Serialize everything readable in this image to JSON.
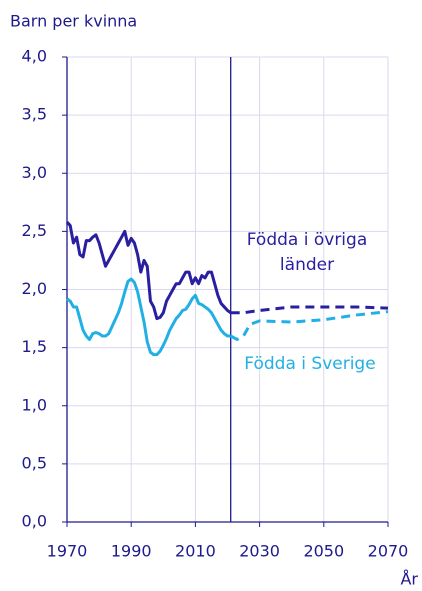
{
  "chart_data": {
    "type": "line",
    "y_label": "Barn per kvinna",
    "x_label": "År",
    "xlim": [
      1970,
      2070
    ],
    "xticks": [
      1970,
      1990,
      2010,
      2030,
      2050,
      2070
    ],
    "ylim": [
      0,
      4
    ],
    "yticks": [
      {
        "value": 0,
        "label": "0,0"
      },
      {
        "value": 0.5,
        "label": "0,5"
      },
      {
        "value": 1,
        "label": "1,0"
      },
      {
        "value": 1.5,
        "label": "1,5"
      },
      {
        "value": 2,
        "label": "2,0"
      },
      {
        "value": 2.5,
        "label": "2,5"
      },
      {
        "value": 3,
        "label": "3,0"
      },
      {
        "value": 3.5,
        "label": "3,5"
      },
      {
        "value": 4,
        "label": "4,0"
      }
    ],
    "grid": true,
    "vline": 2021,
    "series": [
      {
        "name": "Födda i övriga länder",
        "color": "#2a1fa0",
        "x": [
          1970,
          1971,
          1972,
          1973,
          1974,
          1975,
          1976,
          1977,
          1978,
          1979,
          1980,
          1981,
          1982,
          1983,
          1984,
          1985,
          1986,
          1987,
          1988,
          1989,
          1990,
          1991,
          1992,
          1993,
          1994,
          1995,
          1996,
          1997,
          1998,
          1999,
          2000,
          2001,
          2002,
          2003,
          2004,
          2005,
          2006,
          2007,
          2008,
          2009,
          2010,
          2011,
          2012,
          2013,
          2014,
          2015,
          2016,
          2017,
          2018,
          2019,
          2020,
          2021
        ],
        "values": [
          2.58,
          2.55,
          2.4,
          2.45,
          2.3,
          2.28,
          2.42,
          2.42,
          2.45,
          2.47,
          2.4,
          2.3,
          2.2,
          2.25,
          2.3,
          2.35,
          2.4,
          2.45,
          2.5,
          2.38,
          2.44,
          2.4,
          2.3,
          2.15,
          2.25,
          2.2,
          1.9,
          1.85,
          1.75,
          1.76,
          1.8,
          1.9,
          1.95,
          2.0,
          2.05,
          2.05,
          2.1,
          2.15,
          2.15,
          2.05,
          2.1,
          2.05,
          2.12,
          2.1,
          2.15,
          2.15,
          2.05,
          1.95,
          1.88,
          1.85,
          1.82,
          1.8
        ],
        "projection_x": [
          2021,
          2025,
          2030,
          2040,
          2050,
          2060,
          2070
        ],
        "projection_values": [
          1.8,
          1.8,
          1.82,
          1.85,
          1.85,
          1.85,
          1.84
        ]
      },
      {
        "name": "Födda i Sverige",
        "color": "#22b0e4",
        "x": [
          1970,
          1971,
          1972,
          1973,
          1974,
          1975,
          1976,
          1977,
          1978,
          1979,
          1980,
          1981,
          1982,
          1983,
          1984,
          1985,
          1986,
          1987,
          1988,
          1989,
          1990,
          1991,
          1992,
          1993,
          1994,
          1995,
          1996,
          1997,
          1998,
          1999,
          2000,
          2001,
          2002,
          2003,
          2004,
          2005,
          2006,
          2007,
          2008,
          2009,
          2010,
          2011,
          2012,
          2013,
          2014,
          2015,
          2016,
          2017,
          2018,
          2019,
          2020,
          2021
        ],
        "values": [
          1.92,
          1.9,
          1.85,
          1.85,
          1.75,
          1.65,
          1.6,
          1.57,
          1.62,
          1.63,
          1.62,
          1.6,
          1.6,
          1.62,
          1.68,
          1.74,
          1.8,
          1.88,
          1.98,
          2.07,
          2.09,
          2.06,
          1.98,
          1.85,
          1.72,
          1.55,
          1.46,
          1.44,
          1.44,
          1.47,
          1.52,
          1.58,
          1.65,
          1.7,
          1.75,
          1.78,
          1.82,
          1.83,
          1.87,
          1.92,
          1.95,
          1.88,
          1.87,
          1.85,
          1.83,
          1.8,
          1.75,
          1.7,
          1.65,
          1.62,
          1.6,
          1.6
        ],
        "projection_x": [
          2021,
          2023,
          2025,
          2027,
          2030,
          2040,
          2050,
          2060,
          2070
        ],
        "projection_values": [
          1.6,
          1.57,
          1.6,
          1.7,
          1.73,
          1.72,
          1.74,
          1.78,
          1.81
        ]
      }
    ]
  }
}
